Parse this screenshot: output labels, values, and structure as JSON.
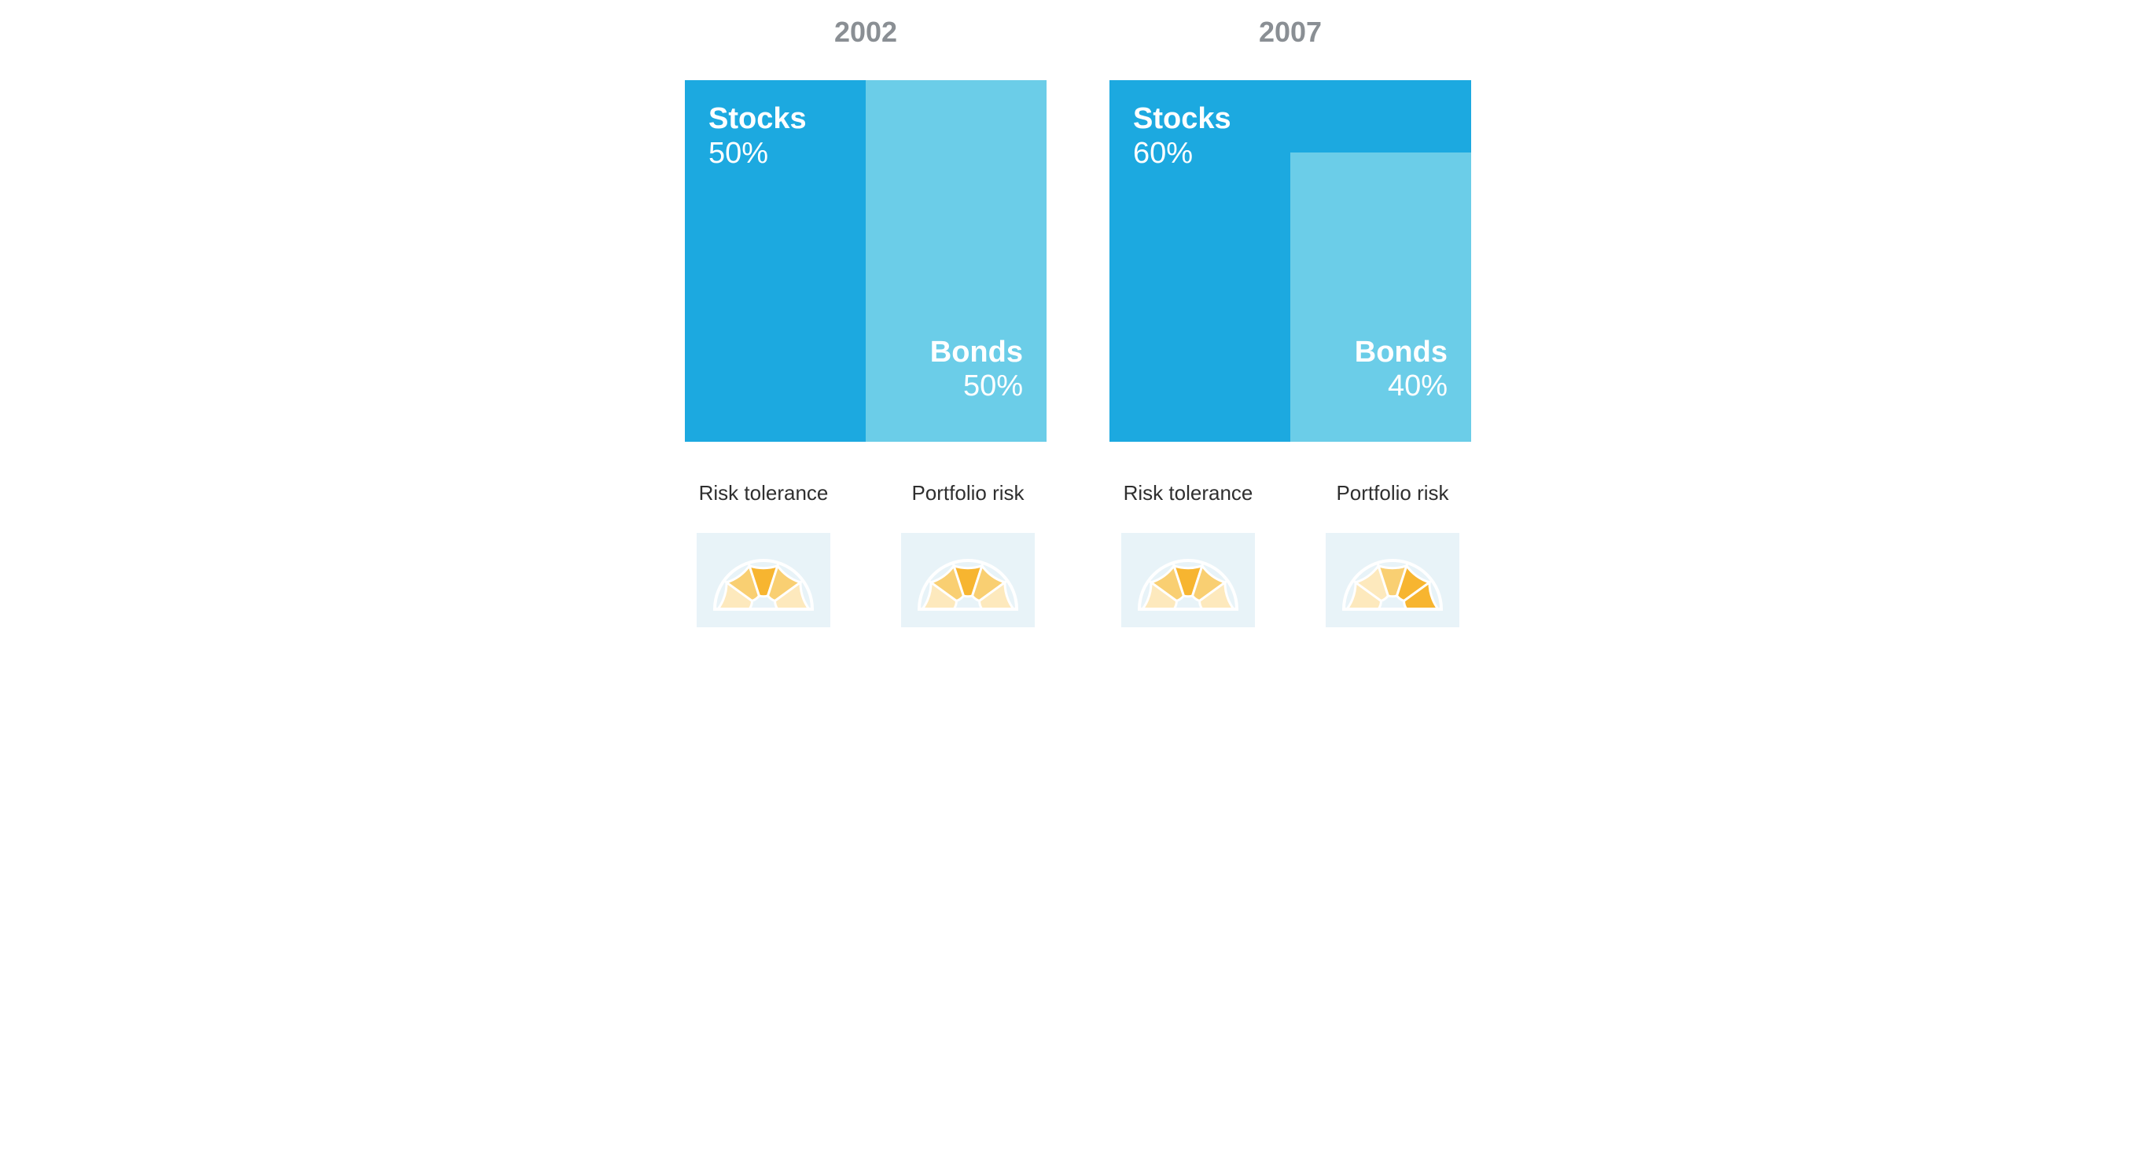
{
  "chart": {
    "type": "infographic",
    "background_color": "#ffffff",
    "title_color": "#8a8f94",
    "title_fontsize": 36,
    "label_text_color": "#ffffff",
    "label_name_fontsize": 38,
    "label_name_weight": 700,
    "label_pct_fontsize": 38,
    "label_pct_weight": 300,
    "gauge_title_color": "#2f2f2f",
    "gauge_title_fontsize": 26,
    "gauge_bg_color": "#e8f3f8",
    "stocks_color": "#1ca9e0",
    "bonds_color": "#6bcde8",
    "gauge_outline_color": "#ffffff",
    "gauge_segment_colors": {
      "dim": "#fde9bd",
      "mid": "#f9cf72",
      "bright": "#f7b530"
    },
    "panels": [
      {
        "year": "2002",
        "stocks": {
          "label": "Stocks",
          "pct_text": "50%",
          "pct_value": 50
        },
        "bonds": {
          "label": "Bonds",
          "pct_text": "50%",
          "pct_value": 50
        },
        "gauges": [
          {
            "title": "Risk tolerance",
            "highlight_index": 2,
            "segments": [
              "dim",
              "mid",
              "bright",
              "mid",
              "dim"
            ]
          },
          {
            "title": "Portfolio risk",
            "highlight_index": 2,
            "segments": [
              "dim",
              "mid",
              "bright",
              "mid",
              "dim"
            ]
          }
        ]
      },
      {
        "year": "2007",
        "stocks": {
          "label": "Stocks",
          "pct_text": "60%",
          "pct_value": 60
        },
        "bonds": {
          "label": "Bonds",
          "pct_text": "40%",
          "pct_value": 40
        },
        "gauges": [
          {
            "title": "Risk tolerance",
            "highlight_index": 2,
            "segments": [
              "dim",
              "mid",
              "bright",
              "mid",
              "dim"
            ]
          },
          {
            "title": "Portfolio risk",
            "highlight_index": 3,
            "segments": [
              "dim",
              "dim",
              "mid",
              "bright",
              "bright"
            ]
          }
        ]
      }
    ]
  }
}
